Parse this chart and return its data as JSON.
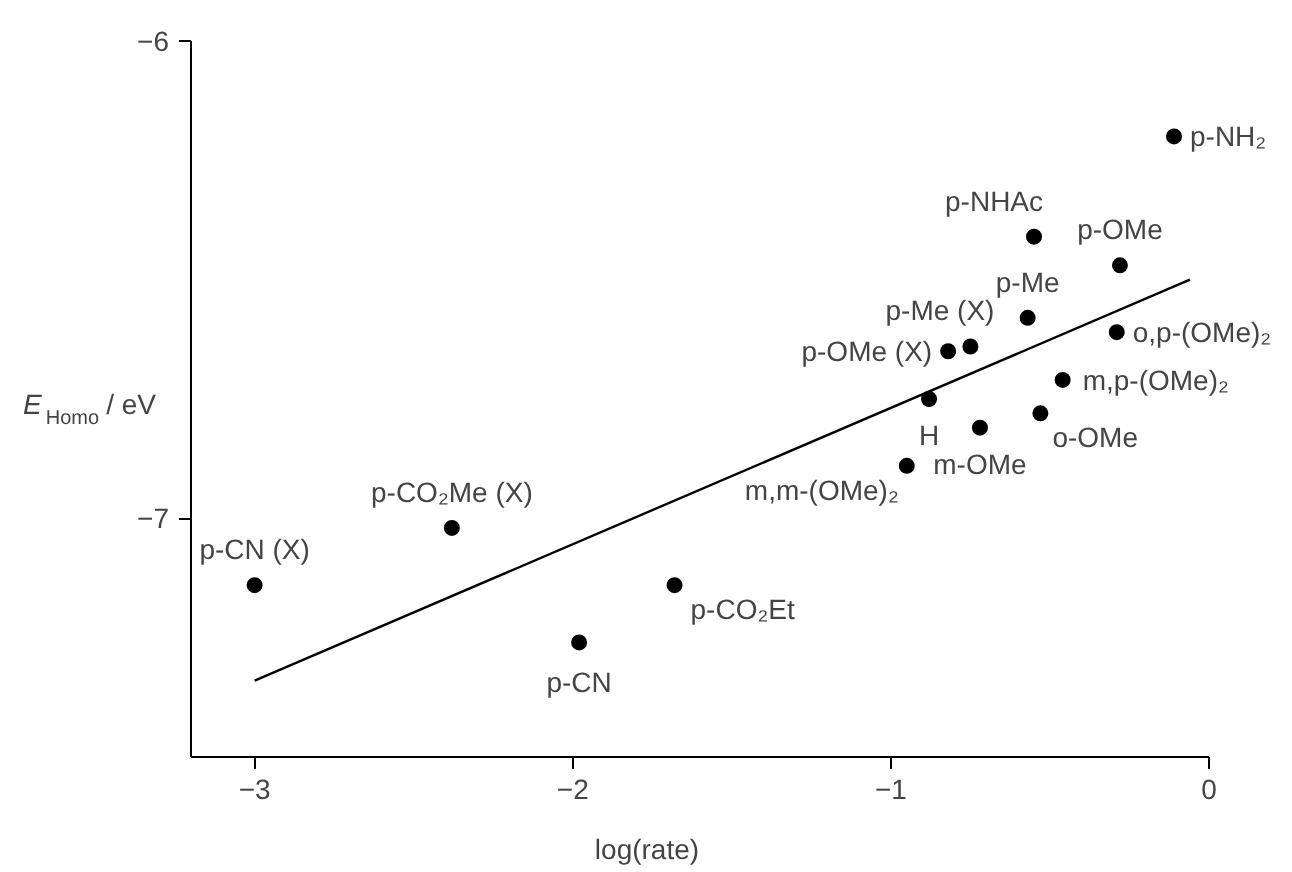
{
  "chart_data": {
    "type": "scatter",
    "xlabel": "log(rate)",
    "ylabel": "E$_{Homo}$ / eV",
    "xlim": [
      -3.2,
      0
    ],
    "ylim": [
      -7.5,
      -6
    ],
    "xticks": [
      {
        "value": -3,
        "label": "−3"
      },
      {
        "value": -2,
        "label": "−2"
      },
      {
        "value": -1,
        "label": "−1"
      },
      {
        "value": 0,
        "label": "0"
      }
    ],
    "yticks": [
      {
        "value": -6,
        "label": "−6"
      },
      {
        "value": -7,
        "label": "−7"
      }
    ],
    "grid": false,
    "series": [
      {
        "marker": "circle",
        "color": "#000000",
        "x": [
          -0.11,
          -0.55,
          -0.28,
          -0.57,
          -0.75,
          -0.82,
          -0.29,
          -0.46,
          -0.88,
          -0.53,
          -0.72,
          -0.95,
          -2.38,
          -3.0,
          -1.68,
          -1.98
        ],
        "values": [
          -6.2,
          -6.41,
          -6.47,
          -6.58,
          -6.64,
          -6.65,
          -6.61,
          -6.71,
          -6.75,
          -6.78,
          -6.81,
          -6.89,
          -7.02,
          -7.14,
          -7.14,
          -7.26
        ]
      },
      {
        "type": "line",
        "color": "#000000",
        "line_style": "solid",
        "x": [
          -3.0,
          -0.06
        ],
        "values": [
          -7.34,
          -6.5
        ]
      }
    ],
    "annotations": [
      {
        "text": "p-NH₂",
        "x": -0.11,
        "y": -6.2
      },
      {
        "text": "p-NHAc",
        "x": -0.55,
        "y": -6.41
      },
      {
        "text": "p-OMe",
        "x": -0.28,
        "y": -6.47
      },
      {
        "text": "p-Me",
        "x": -0.57,
        "y": -6.58
      },
      {
        "text": "p-Me (X)",
        "x": -0.75,
        "y": -6.64
      },
      {
        "text": "p-OMe (X)",
        "x": -0.82,
        "y": -6.65
      },
      {
        "text": "o,p-(OMe)₂",
        "x": -0.29,
        "y": -6.61
      },
      {
        "text": "m,p-(OMe)₂",
        "x": -0.46,
        "y": -6.71
      },
      {
        "text": "H",
        "x": -0.88,
        "y": -6.75
      },
      {
        "text": "o-OMe",
        "x": -0.53,
        "y": -6.78
      },
      {
        "text": "m-OMe",
        "x": -0.72,
        "y": -6.81
      },
      {
        "text": "m,m-(OMe)₂",
        "x": -0.95,
        "y": -6.89
      },
      {
        "text": "p-CO₂Me (X)",
        "x": -2.38,
        "y": -7.02
      },
      {
        "text": "p-CN (X)",
        "x": -3.0,
        "y": -7.14
      },
      {
        "text": "p-CO₂Et",
        "x": -1.68,
        "y": -7.14
      },
      {
        "text": "p-CN",
        "x": -1.98,
        "y": -7.26
      }
    ]
  }
}
